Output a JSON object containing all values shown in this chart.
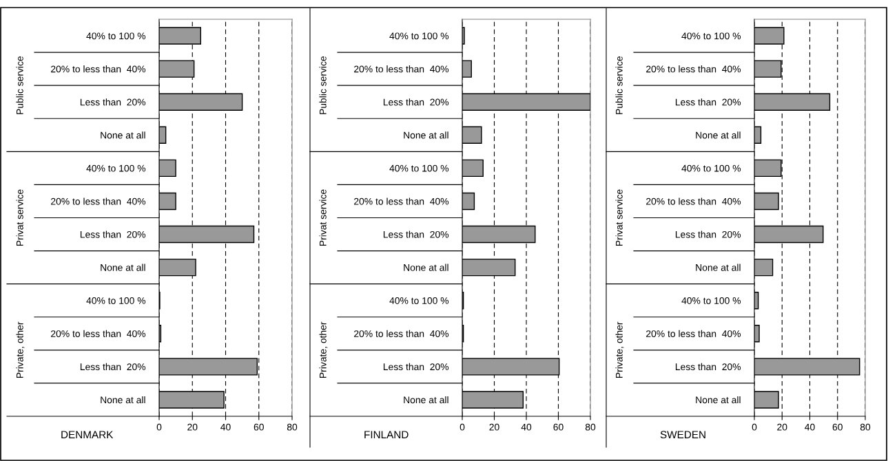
{
  "chart_data": [
    {
      "type": "bar",
      "orientation": "horizontal",
      "title": "DENMARK",
      "categories": [
        "40% to 100 %",
        "20% to less than  40%",
        "Less than  20%",
        "None at all",
        "40% to 100 %",
        "20% to less than  40%",
        "Less than  20%",
        "None at all",
        "40% to 100 %",
        "20% to less than  40%",
        "Less than  20%",
        "None at all"
      ],
      "values": [
        25,
        21,
        50,
        4,
        10,
        10,
        57,
        22,
        0.4,
        1,
        59,
        39
      ],
      "color": "#999999",
      "xlim": [
        0,
        80
      ],
      "xticks": [
        0,
        20,
        40,
        60,
        80
      ],
      "grid": "x",
      "annotations": [
        "Public service",
        "Privat service",
        "Private, other"
      ]
    },
    {
      "type": "bar",
      "orientation": "horizontal",
      "title": "FINLAND",
      "categories": [
        "40% to 100 %",
        "20% to less than  40%",
        "Less than  20%",
        "None at all",
        "40% to 100 %",
        "20% to less than  40%",
        "Less than  20%",
        "None at all",
        "40% to 100 %",
        "20% to less than  40%",
        "Less than  20%",
        "None at all"
      ],
      "values": [
        1.3,
        5.7,
        80,
        12,
        13,
        7.5,
        45.5,
        33,
        0.7,
        0.7,
        60.5,
        38
      ],
      "color": "#999999",
      "xlim": [
        0,
        80
      ],
      "xticks": [
        0,
        20,
        40,
        60,
        80
      ],
      "grid": "x",
      "annotations": [
        "Public service",
        "Privat service",
        "Private, other"
      ]
    },
    {
      "type": "bar",
      "orientation": "horizontal",
      "title": "SWEDEN",
      "categories": [
        "40% to 100 %",
        "20% to less than  40%",
        "Less than  20%",
        "None at all",
        "40% to 100 %",
        "20% to less than  40%",
        "Less than  20%",
        "None at all",
        "40% to 100 %",
        "20% to less than  40%",
        "Less than  20%",
        "None at all"
      ],
      "values": [
        21.3,
        19.3,
        54.4,
        4.7,
        19.3,
        17.4,
        49.6,
        13.2,
        2.8,
        3.5,
        75.9,
        17.4
      ],
      "color": "#999999",
      "xlim": [
        0,
        80
      ],
      "xticks": [
        0,
        20,
        40,
        60,
        80
      ],
      "grid": "x",
      "annotations": [
        "Public service",
        "Privat service",
        "Private, other"
      ]
    }
  ]
}
